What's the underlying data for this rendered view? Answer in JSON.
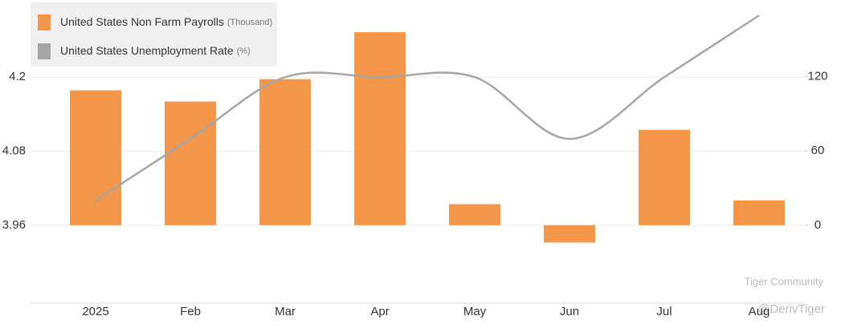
{
  "chart_data": {
    "type": "bar-line",
    "categories": [
      "2025",
      "Feb",
      "Mar",
      "Apr",
      "May",
      "Jun",
      "Jul",
      "Aug"
    ],
    "series": [
      {
        "name": "United States Non Farm Payrolls",
        "unit": "(Thousand)",
        "color": "#f5974a",
        "type": "bar",
        "axis": "y2",
        "values": [
          109,
          100,
          118,
          156,
          17,
          -14,
          77,
          20
        ]
      },
      {
        "name": "United States Unemployment Rate",
        "unit": "(%)",
        "color": "#a6a6a6",
        "type": "line",
        "axis": "y",
        "values": [
          4.0,
          4.1,
          4.2,
          4.2,
          4.2,
          4.1,
          4.2,
          4.3
        ]
      }
    ],
    "ylim": [
      3.834,
      4.325
    ],
    "yticks": [
      3.96,
      4.08,
      {
        "value": 4.2,
        "label": "4.2"
      }
    ],
    "y2lim": [
      -63,
      182
    ],
    "y2ticks": [
      0,
      60,
      120
    ],
    "grid": true,
    "annotations": [
      "Tiger Community",
      "@DerivTiger"
    ]
  }
}
